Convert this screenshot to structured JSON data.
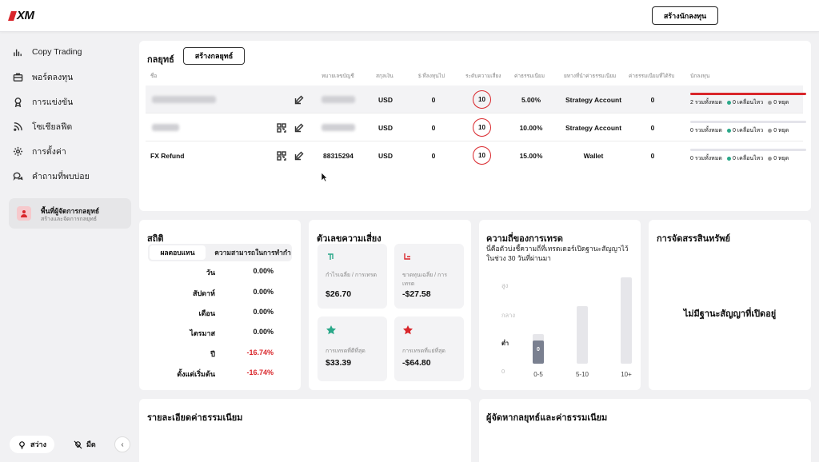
{
  "brand": {
    "logo_text": "XM",
    "accent": "#d9262b"
  },
  "header": {
    "create_investor_label": "สร้างนักลงทุน"
  },
  "sidebar": {
    "items": [
      {
        "label": "Copy Trading",
        "icon": "bar-chart-icon"
      },
      {
        "label": "พอร์ตลงทุน",
        "icon": "briefcase-icon"
      },
      {
        "label": "การแข่งขัน",
        "icon": "medal-icon"
      },
      {
        "label": "โซเชียลฟีด",
        "icon": "rss-icon"
      },
      {
        "label": "การตั้งค่า",
        "icon": "gear-icon"
      },
      {
        "label": "คำถามที่พบบ่อย",
        "icon": "chat-bubbles-icon"
      }
    ],
    "manager": {
      "title": "พื้นที่ผู้จัดการกลยุทธ์",
      "subtitle": "สร้างและจัดการกลยุทธ์"
    },
    "theme_light": "สว่าง",
    "theme_dark": "มืด"
  },
  "strategies": {
    "title": "กลยุทธ์",
    "create_label": "สร้างกลยุทธ์",
    "columns": [
      "ชื่อ",
      "หมายเลขบัญชี",
      "สกุลเงิน",
      "$ ที่ลงทุนไป",
      "ระดับความเสี่ยง",
      "ค่าธรรมเนียม",
      "ยทางที่นำค่าธรรมเนียม",
      "ค่าธรรมเนียมที่ได้รับ",
      "นักลงทุน"
    ],
    "rows": [
      {
        "name": "",
        "account": "",
        "currency": "USD",
        "invested": "0",
        "risk": "10",
        "fee": "5.00%",
        "fee_dest": "Strategy Account",
        "fee_received": "0",
        "investors": {
          "total": "2 รวมทั้งหมด",
          "active": "0 เคลื่อนไหว",
          "stopped": "0 หยุด"
        }
      },
      {
        "name": "",
        "account": "",
        "currency": "USD",
        "invested": "0",
        "risk": "10",
        "fee": "10.00%",
        "fee_dest": "Strategy Account",
        "fee_received": "0",
        "investors": {
          "total": "0 รวมทั้งหมด",
          "active": "0 เคลื่อนไหว",
          "stopped": "0 หยุด"
        }
      },
      {
        "name": "FX Refund",
        "account": "88315294",
        "currency": "USD",
        "invested": "0",
        "risk": "10",
        "fee": "15.00%",
        "fee_dest": "Wallet",
        "fee_received": "0",
        "investors": {
          "total": "0 รวมทั้งหมด",
          "active": "0 เคลื่อนไหว",
          "stopped": "0 หยุด"
        }
      }
    ]
  },
  "stats": {
    "title": "สถิติ",
    "tab_active": "ผลตอบแทน",
    "tab_other": "ความสามารถในการทำกำ",
    "rows": [
      {
        "period": "วัน",
        "value": "0.00%"
      },
      {
        "period": "สัปดาห์",
        "value": "0.00%"
      },
      {
        "period": "เดือน",
        "value": "0.00%"
      },
      {
        "period": "ไตรมาส",
        "value": "0.00%"
      },
      {
        "period": "ปี",
        "value": "-16.74%"
      },
      {
        "period": "ตั้งแต่เริ่มต้น",
        "value": "-16.74%"
      }
    ],
    "negative_color": "#d9262b"
  },
  "risk": {
    "title": "ตัวเลขความเสี่ยง",
    "tiles": [
      {
        "label": "กำไรเฉลี่ย / การเทรด",
        "value": "$26.70",
        "icon": "arrow-up-right-icon"
      },
      {
        "label": "ขาดทุนเฉลี่ย / การเทรด",
        "value": "-$27.58",
        "icon": "arrow-down-right-icon"
      },
      {
        "label": "การเทรดที่ดีที่สุด",
        "value": "$33.39",
        "icon": "star-green-icon"
      },
      {
        "label": "การเทรดที่แย่ที่สุด",
        "value": "-$64.80",
        "icon": "star-red-icon"
      }
    ]
  },
  "frequency": {
    "title": "ความถี่ของการเทรด",
    "subtitle": "นี่คือตัวบ่งชี้ความถี่ที่เทรดเดอร์เปิดฐานะสัญญาไว้ในช่วง 30 วันที่ผ่านมา",
    "y_labels": [
      "สูง",
      "กลาง",
      "ต่ำ",
      "0"
    ]
  },
  "chart_data": {
    "type": "bar",
    "categories": [
      "0-5",
      "5-10",
      "10+"
    ],
    "values": [
      0,
      null,
      null
    ],
    "data_labels": [
      "0",
      "",
      ""
    ],
    "highlighted_category": "0-5",
    "ylabel": "",
    "y_tick_labels": [
      "0",
      "ต่ำ",
      "กลาง",
      "สูง"
    ]
  },
  "allocation": {
    "title": "การจัดสรรสินทรัพย์",
    "empty": "ไม่มีฐานะสัญญาที่เปิดอยู่"
  },
  "fee_details": {
    "title": "รายละเอียดค่าธรรมเนียม"
  },
  "managers_fees": {
    "title": "ผู้จัดหากลยุทธ์และค่าธรรมเนียม"
  }
}
